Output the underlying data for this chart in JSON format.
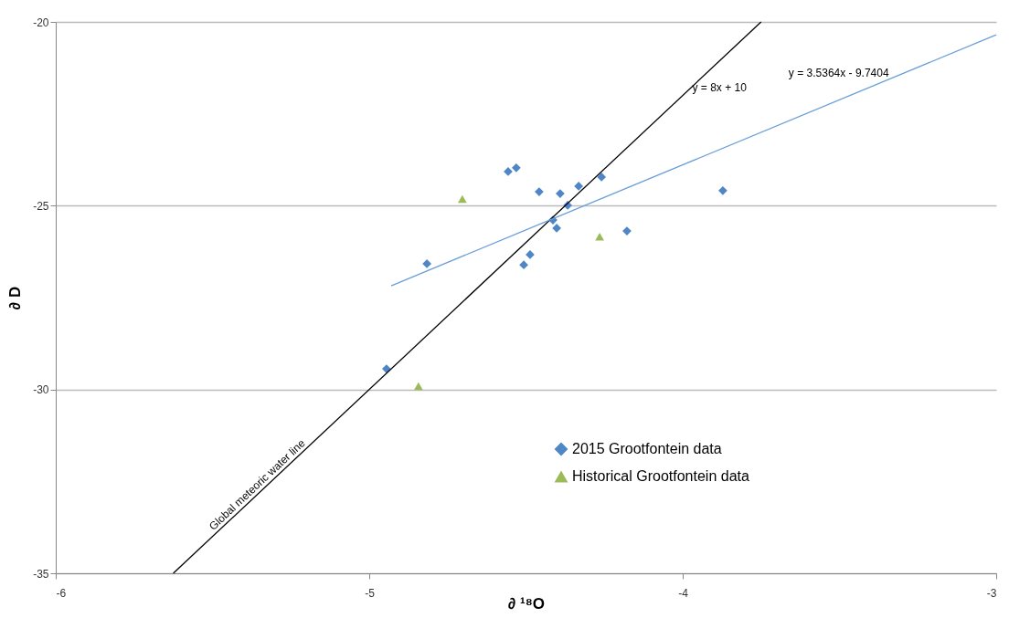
{
  "chart_data": {
    "type": "scatter",
    "xlabel": "∂ ¹⁸O",
    "ylabel": "∂ D",
    "xlim": [
      -6,
      -3
    ],
    "xticks": [
      -6,
      -5,
      -4,
      -3
    ],
    "ylim": [
      -35,
      -20
    ],
    "yticks": [
      -35,
      -30,
      -25,
      -20
    ],
    "grid": "y",
    "legend": "bottom right",
    "series": [
      {
        "name": "2015 Grootfontein data",
        "marker": "diamond",
        "color": "#4f86c6",
        "x": [
          -4.557,
          -4.531,
          -4.458,
          -4.391,
          -4.332,
          -4.259,
          -4.367,
          -4.414,
          -4.402,
          -4.178,
          -4.487,
          -4.507,
          -4.816,
          -3.872,
          -4.945
        ],
        "values": [
          -24.07,
          -23.97,
          -24.62,
          -24.67,
          -24.47,
          -24.22,
          -24.99,
          -25.39,
          -25.61,
          -25.69,
          -26.33,
          -26.61,
          -26.58,
          -24.59,
          -29.44
        ]
      },
      {
        "name": "Historical Grootfontein data",
        "marker": "triangle",
        "color": "#9bbb59",
        "x": [
          -4.703,
          -4.265,
          -4.843
        ],
        "values": [
          -24.82,
          -25.84,
          -29.91
        ]
      },
      {
        "name": "Global meteoric water line",
        "type": "line",
        "color": "#000000",
        "x": [
          -5.625,
          -3.75
        ],
        "values": [
          -35,
          -20
        ]
      },
      {
        "type": "line",
        "color": "#6a9fd8",
        "x": [
          -4.93,
          -3
        ],
        "values": [
          -27.18,
          -20.35
        ]
      }
    ],
    "annotations": [
      "y = 8x + 10",
      "y = 3.5364x - 9.7404"
    ]
  }
}
